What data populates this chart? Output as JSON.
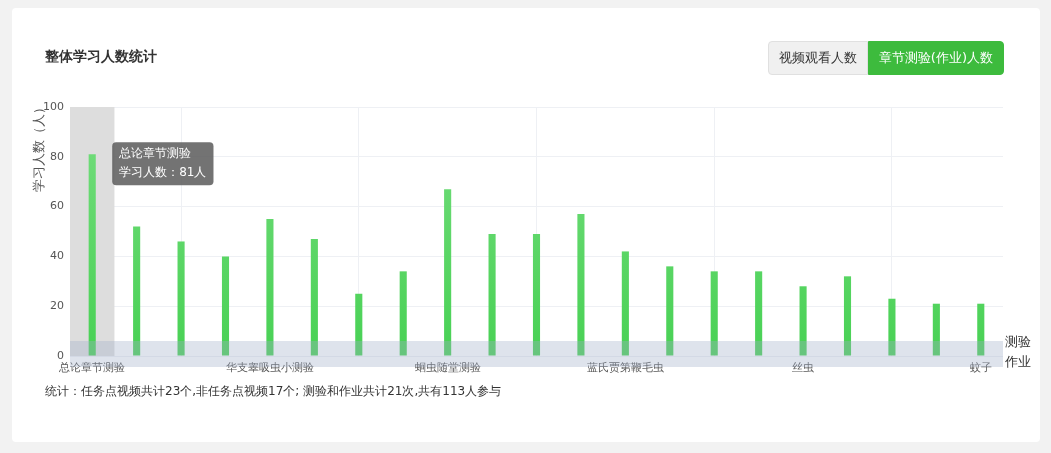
{
  "chart_data": {
    "type": "bar",
    "title": "整体学习人数统计",
    "xlabel": "测验作业",
    "ylabel": "学习人数（人）",
    "categories": [
      "总论章节测验",
      null,
      null,
      null,
      "华支睾吸虫小测验",
      null,
      null,
      null,
      "蛔虫随堂测验",
      null,
      null,
      null,
      "蓝氏贾第鞭毛虫",
      null,
      null,
      null,
      "丝虫",
      null,
      null,
      null,
      "蚊子"
    ],
    "values": [
      81,
      52,
      46,
      40,
      55,
      47,
      25,
      34,
      67,
      49,
      49,
      57,
      42,
      36,
      34,
      34,
      28,
      32,
      23,
      21,
      21
    ],
    "color": "#48d154",
    "ylim": [
      0,
      100
    ],
    "yticks": [
      0,
      20,
      40,
      60,
      80,
      100
    ],
    "grid": true,
    "bands": [
      {
        "axis": "x",
        "from": "总论章节测验",
        "to": "总论章节测验",
        "color": "#dddddd"
      }
    ],
    "annotations": [
      "视频观看人数",
      "章节测验(作业)人数",
      {
        "text": "总论章节测验",
        "x": "总论章节测验",
        "y": 81
      },
      {
        "text": "学习人数：81人",
        "x": "总论章节测验",
        "y": 81
      },
      "统计：任务点视频共计23个,非任务点视频17个; 测验和作业共计21次,共有113人参与"
    ]
  }
}
